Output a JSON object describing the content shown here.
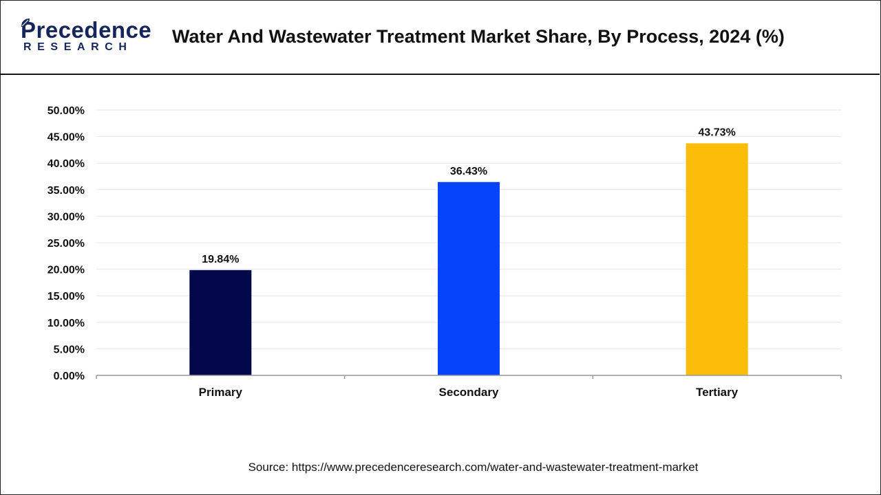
{
  "header": {
    "logo_main": "Precedence",
    "logo_sub": "RESEARCH",
    "title": "Water And Wastewater Treatment Market Share, By Process, 2024 (%)"
  },
  "colors": {
    "logo": "#16265c",
    "gridline": "#e6e6e6",
    "axis": "#999999"
  },
  "icons": {
    "logo_mark": "leaf-icon"
  },
  "chart_data": {
    "type": "bar",
    "title": "Water And Wastewater Treatment Market Share, By Process, 2024 (%)",
    "categories": [
      "Primary",
      "Secondary",
      "Tertiary"
    ],
    "values": [
      19.84,
      36.43,
      43.73
    ],
    "data_labels": [
      "19.84%",
      "36.43%",
      "43.73%"
    ],
    "bar_colors": [
      "#03084a",
      "#0644fb",
      "#fcbd08"
    ],
    "ylim": [
      0,
      50
    ],
    "yticks": [
      0,
      5,
      10,
      15,
      20,
      25,
      30,
      35,
      40,
      45,
      50
    ],
    "ytick_labels": [
      "0.00%",
      "5.00%",
      "10.00%",
      "15.00%",
      "20.00%",
      "25.00%",
      "30.00%",
      "35.00%",
      "40.00%",
      "45.00%",
      "50.00%"
    ],
    "grid": true,
    "legend": "none",
    "xlabel": "",
    "ylabel": ""
  },
  "footer": {
    "source": "Source: https://www.precedenceresearch.com/water-and-wastewater-treatment-market"
  }
}
